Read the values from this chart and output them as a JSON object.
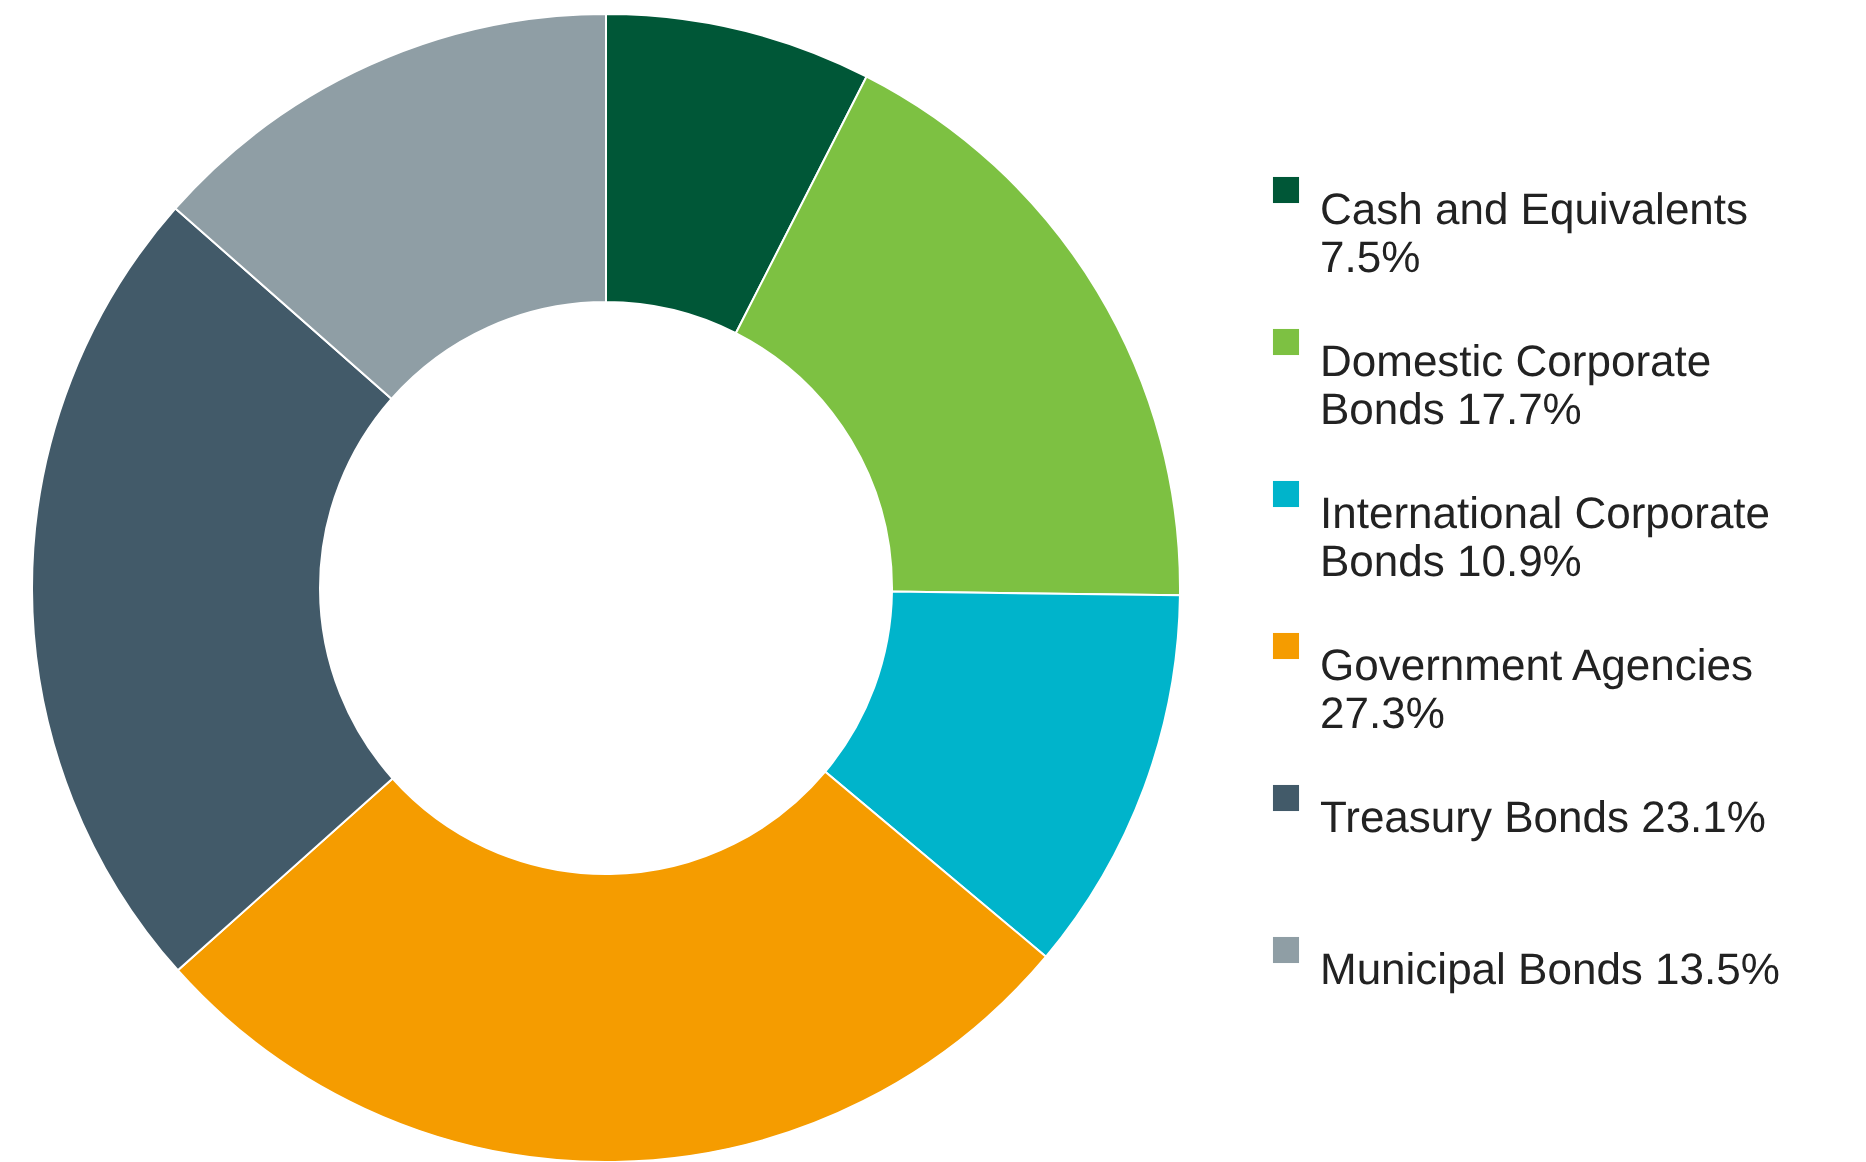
{
  "chart_data": {
    "type": "donut",
    "categories": [
      "Cash and Equivalents",
      "Domestic Corporate Bonds",
      "International Corporate Bonds",
      "Government Agencies",
      "Treasury Bonds",
      "Municipal Bonds"
    ],
    "values": [
      7.5,
      17.7,
      10.9,
      27.3,
      23.1,
      13.5
    ],
    "value_labels": [
      "7.5%",
      "17.7%",
      "10.9%",
      "27.3%",
      "23.1%",
      "13.5%"
    ],
    "colors": [
      "#005737",
      "#7dc142",
      "#00b4cb",
      "#f59c00",
      "#425a69",
      "#8f9ea5"
    ],
    "legend": "right"
  }
}
